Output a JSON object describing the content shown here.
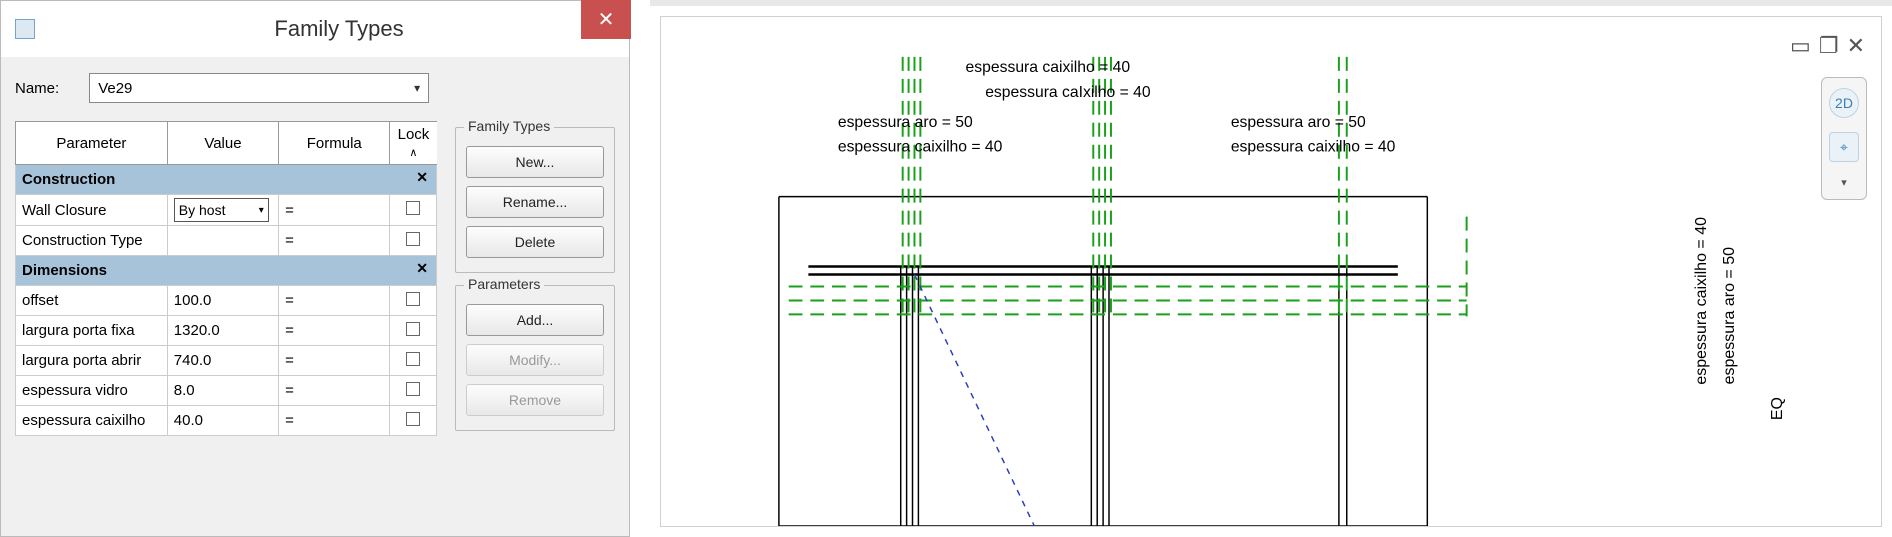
{
  "dialog": {
    "title": "Family Types",
    "close": "✕",
    "name_label": "Name:",
    "name_value": "Ve29",
    "columns": {
      "parameter": "Parameter",
      "value": "Value",
      "formula": "Formula",
      "lock": "Lock"
    },
    "groups": [
      {
        "title": "Construction",
        "rows": [
          {
            "param": "Wall Closure",
            "value": "By host",
            "valueIsSelect": true,
            "formula": "=",
            "lock": false
          },
          {
            "param": "Construction Type",
            "value": "",
            "formula": "=",
            "lock": false
          }
        ]
      },
      {
        "title": "Dimensions",
        "rows": [
          {
            "param": "offset",
            "value": "100.0",
            "formula": "=",
            "lock": false
          },
          {
            "param": "largura porta fixa",
            "value": "1320.0",
            "formula": "=",
            "lock": false
          },
          {
            "param": "largura porta abrir",
            "value": "740.0",
            "formula": "=",
            "lock": false
          },
          {
            "param": "espessura vidro",
            "value": "8.0",
            "formula": "=",
            "lock": false
          },
          {
            "param": "espessura caixilho",
            "value": "40.0",
            "formula": "=",
            "lock": false
          }
        ]
      }
    ],
    "family_types": {
      "title": "Family Types",
      "new": "New...",
      "rename": "Rename...",
      "delete": "Delete"
    },
    "parameters": {
      "title": "Parameters",
      "add": "Add...",
      "modify": "Modify...",
      "remove": "Remove"
    }
  },
  "canvas": {
    "labels": {
      "top1": "espessura caixilho = 40",
      "top2": "espessura caIxilho = 40",
      "left1": "espessura aro = 50",
      "left2": "espessura caixilho = 40",
      "right1": "espessura aro = 50",
      "right2": "espessura caixilho = 40",
      "v1": "espessura caixilho = 40",
      "v2": "espessura aro = 50",
      "v3": "EQ"
    },
    "colors": {
      "green": "#1aa01a",
      "black": "#000000",
      "blue": "#2b3fbb",
      "gridbg": "#ffffff"
    },
    "view_icons": {
      "c2d": "2D",
      "zoom": "⌖"
    },
    "window_controls": {
      "min": "▭",
      "max": "❐",
      "close": "✕"
    }
  }
}
